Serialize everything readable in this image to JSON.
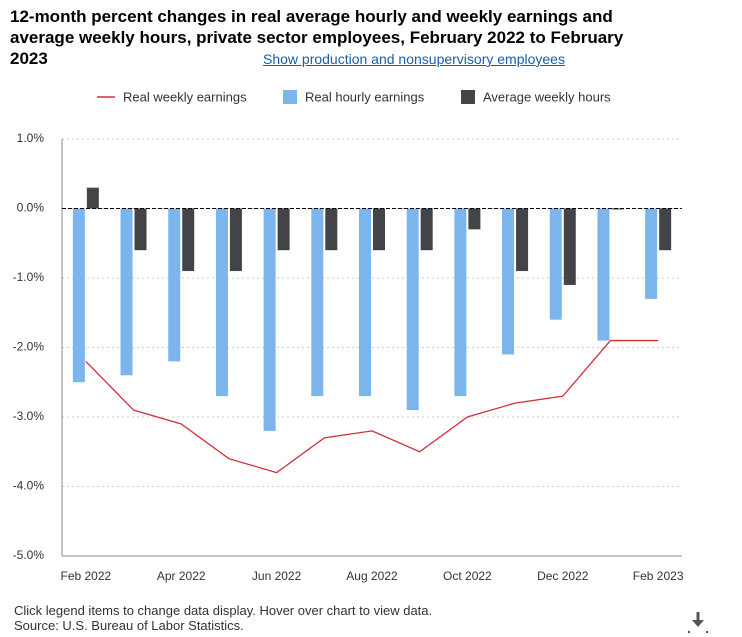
{
  "chart_data": {
    "type": "bar-line",
    "title": "12-month percent changes in real average hourly and weekly earnings and average weekly hours, private sector employees, February 2022 to February 2023",
    "categories": [
      "Feb 2022",
      null,
      "Apr 2022",
      null,
      "Jun 2022",
      null,
      "Aug 2022",
      null,
      "Oct 2022",
      null,
      "Dec 2022",
      null,
      "Feb 2023"
    ],
    "series": [
      {
        "name": "Real weekly earnings",
        "type": "line",
        "color": "#d0303a",
        "values": [
          -2.2,
          -2.9,
          -3.1,
          -3.6,
          -3.8,
          -3.3,
          -3.2,
          -3.5,
          -3.0,
          -2.8,
          -2.7,
          -1.9,
          -1.9
        ]
      },
      {
        "name": "Real hourly earnings",
        "type": "bar",
        "color": "#7cb5ec",
        "values": [
          -2.5,
          -2.4,
          -2.2,
          -2.7,
          -3.2,
          -2.7,
          -2.7,
          -2.9,
          -2.7,
          -2.1,
          -1.6,
          -1.9,
          -1.3
        ]
      },
      {
        "name": "Average weekly hours",
        "type": "bar",
        "color": "#434348",
        "values": [
          0.3,
          -0.6,
          -0.9,
          -0.9,
          -0.6,
          -0.6,
          -0.6,
          -0.6,
          -0.3,
          -0.9,
          -1.1,
          0.0,
          -0.6
        ]
      }
    ],
    "ylim": [
      -5,
      1
    ],
    "yticks": [
      {
        "value": 1,
        "label": "1.0%"
      },
      {
        "value": 0,
        "label": "0.0%"
      },
      {
        "value": -1,
        "label": "-1.0%"
      },
      {
        "value": -2,
        "label": "-2.0%"
      },
      {
        "value": -3,
        "label": "-3.0%"
      },
      {
        "value": -4,
        "label": "-4.0%"
      },
      {
        "value": -5,
        "label": "-5.0%"
      }
    ],
    "grid": true
  },
  "link": "Show production and nonsupervisory employees",
  "footer": [
    "Click legend items to change data display. Hover over chart to view data.",
    "Source: U.S. Bureau of Labor Statistics."
  ]
}
